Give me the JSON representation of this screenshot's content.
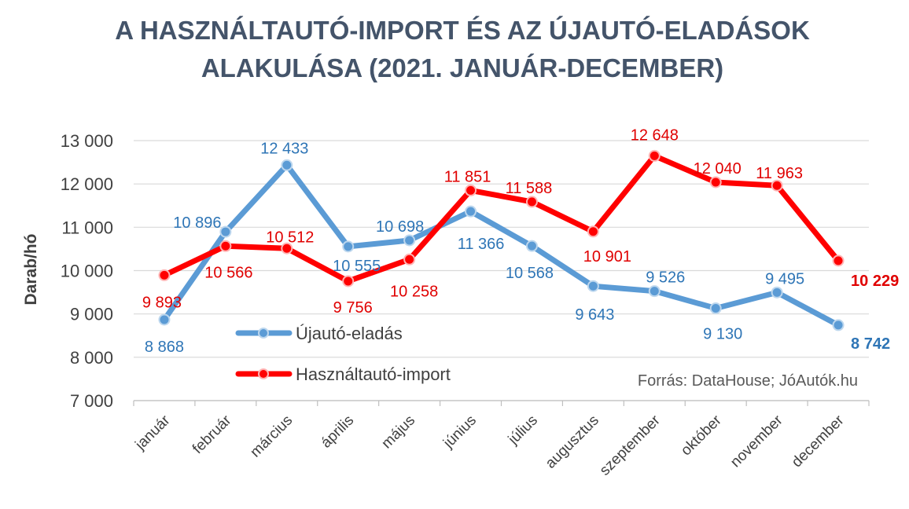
{
  "chart_data": {
    "type": "line",
    "title_line1": "A HASZNÁLTAUTÓ-IMPORT ÉS AZ ÚJAUTÓ-ELADÁSOK",
    "title_line2": "ALAKULÁSA (2021. JANUÁR-DECEMBER)",
    "ylabel": "Darab/hó",
    "xlabel": "",
    "ylim": [
      7000,
      13000
    ],
    "yticks": [
      7000,
      8000,
      9000,
      10000,
      11000,
      12000,
      13000
    ],
    "ytick_labels": [
      "7 000",
      "8 000",
      "9 000",
      "10 000",
      "11 000",
      "12 000",
      "13 000"
    ],
    "categories": [
      "január",
      "február",
      "március",
      "április",
      "május",
      "június",
      "július",
      "augusztus",
      "szeptember",
      "október",
      "november",
      "december"
    ],
    "grid": "horizontal",
    "legend_position": "lower-left-inside",
    "series": [
      {
        "name": "Újautó-eladás",
        "color": "#5B9BD5",
        "label_color": "#2E75B6",
        "values": [
          8868,
          10896,
          12433,
          10555,
          10698,
          11366,
          10568,
          9643,
          9526,
          9130,
          9495,
          8742
        ],
        "labels": [
          "8 868",
          "10 896",
          "12 433",
          "10 555",
          "10 698",
          "11 366",
          "10 568",
          "9 643",
          "9 526",
          "9 130",
          "9 495",
          "8 742"
        ]
      },
      {
        "name": "Használtautó-import",
        "color": "#FF0000",
        "label_color": "#E00000",
        "values": [
          9893,
          10566,
          10512,
          9756,
          10258,
          11851,
          11588,
          10901,
          12648,
          12040,
          11963,
          10229
        ],
        "labels": [
          "9 893",
          "10 566",
          "10 512",
          "9 756",
          "10 258",
          "11 851",
          "11 588",
          "10 901",
          "12 648",
          "12 040",
          "11 963",
          "10 229"
        ]
      }
    ],
    "source": "Forrás: DataHouse; JóAutók.hu"
  }
}
